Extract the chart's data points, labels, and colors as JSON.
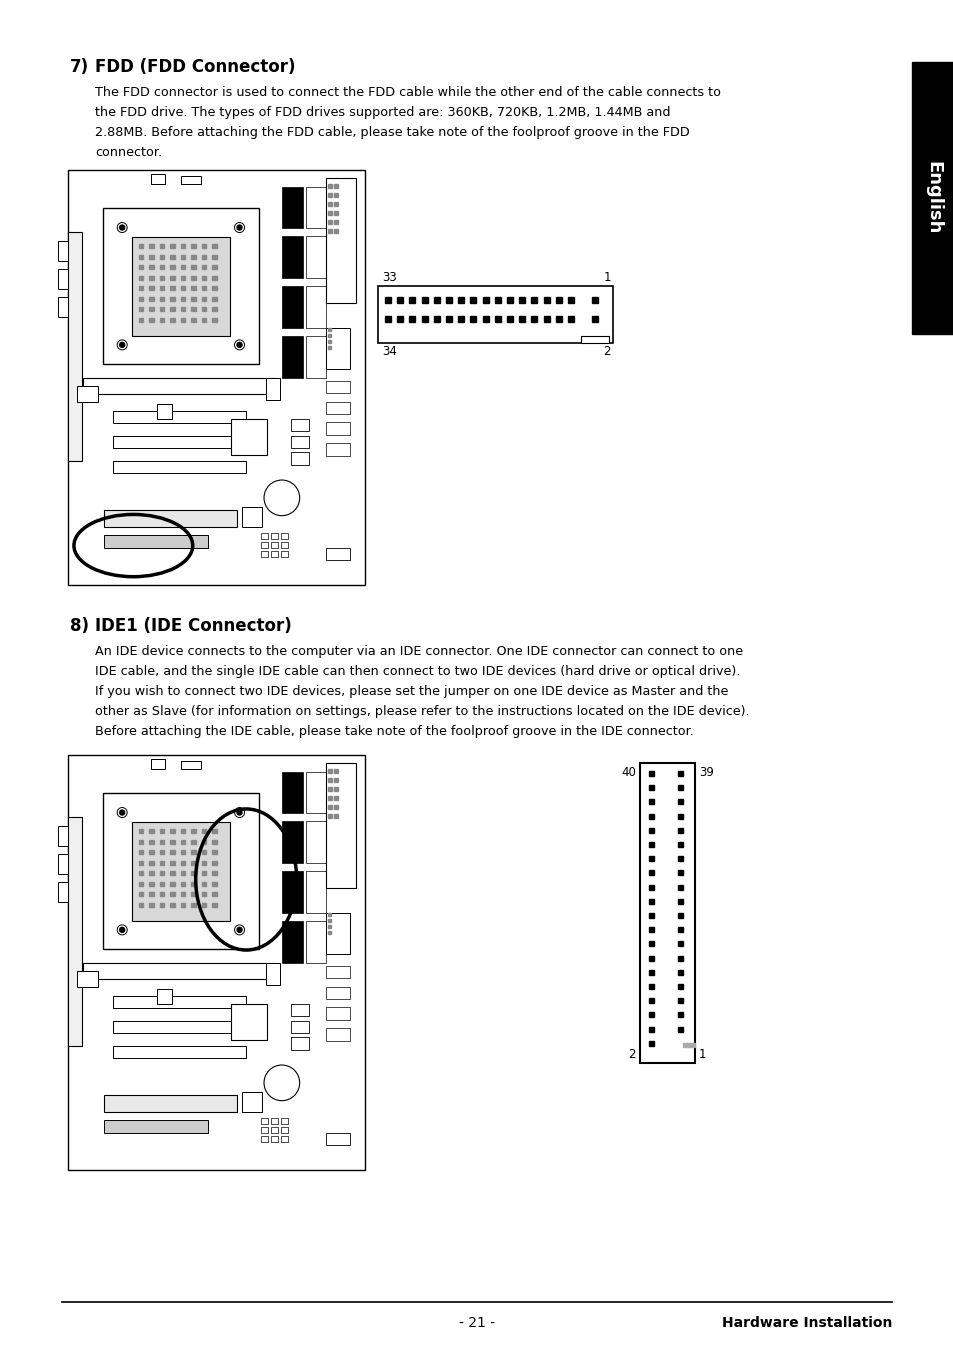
{
  "title": "Hardware Installation",
  "page_num": "- 21 -",
  "section7_num": "7)",
  "section7_head": "FDD (FDD Connector)",
  "section7_body_lines": [
    "The FDD connector is used to connect the FDD cable while the other end of the cable connects to",
    "the FDD drive. The types of FDD drives supported are: 360KB, 720KB, 1.2MB, 1.44MB and",
    "2.88MB. Before attaching the FDD cable, please take note of the foolproof groove in the FDD",
    "connector."
  ],
  "section8_num": "8)",
  "section8_head": "IDE1 (IDE Connector)",
  "section8_body_lines": [
    "An IDE device connects to the computer via an IDE connector. One IDE connector can connect to one",
    "IDE cable, and the single IDE cable can then connect to two IDE devices (hard drive or optical drive).",
    "If you wish to connect two IDE devices, please set the jumper on one IDE device as Master and the",
    "other as Slave (for information on settings, please refer to the instructions located on the IDE device).",
    "Before attaching the IDE cable, please take note of the foolproof groove in the IDE connector."
  ],
  "fdd_pin33": "33",
  "fdd_pin1": "1",
  "fdd_pin34": "34",
  "fdd_pin2": "2",
  "ide_pin40": "40",
  "ide_pin39": "39",
  "ide_pin2": "2",
  "ide_pin1": "1",
  "english_tab_text": "English",
  "bg_color": "#ffffff",
  "text_color": "#000000",
  "tab_color": "#000000",
  "tab_text_color": "#ffffff"
}
